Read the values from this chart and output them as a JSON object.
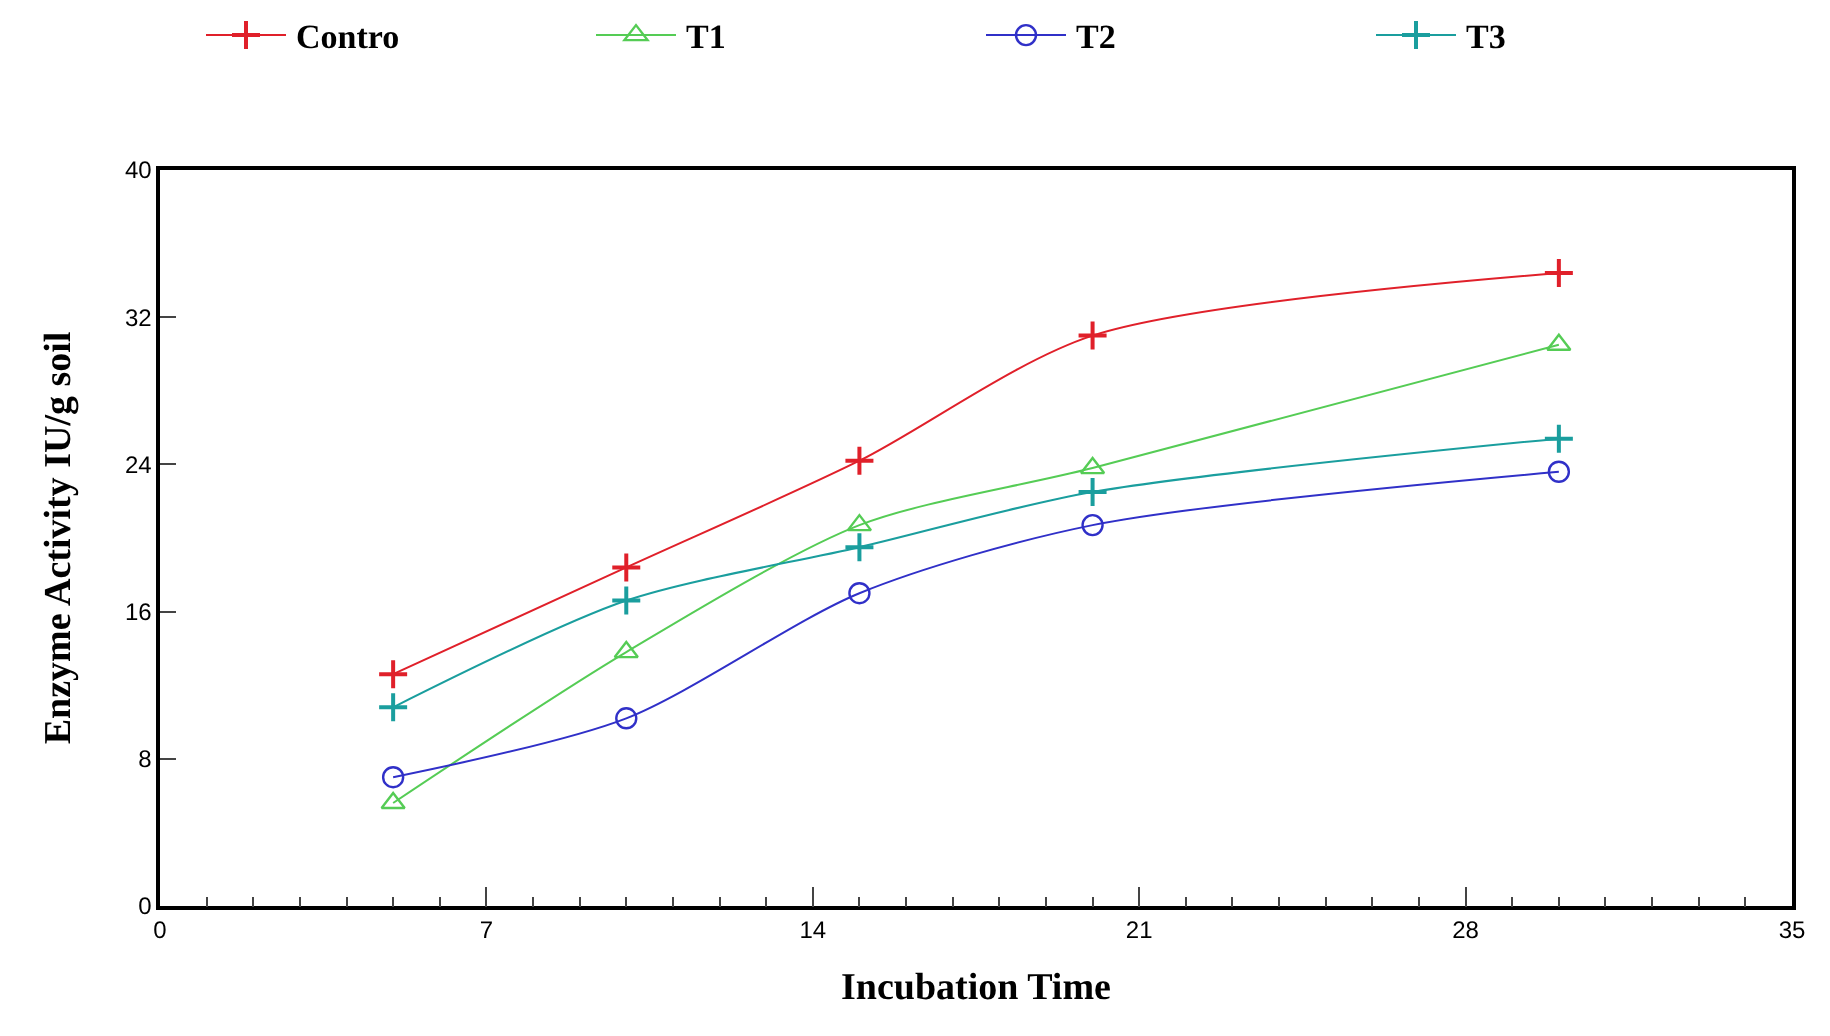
{
  "chart_data": {
    "type": "line",
    "xlabel": "Incubation Time",
    "ylabel": "Enzyme Activity IU/g soil",
    "x": [
      5,
      10,
      15,
      20,
      30
    ],
    "series": [
      {
        "name": "Contro",
        "color": "#e0202a",
        "marker": "cross",
        "values": [
          12.6,
          18.4,
          24.2,
          31.0,
          34.4
        ]
      },
      {
        "name": "T1",
        "color": "#55cc55",
        "marker": "triangle",
        "values": [
          5.6,
          13.8,
          20.7,
          23.8,
          30.5
        ]
      },
      {
        "name": "T2",
        "color": "#3030c8",
        "marker": "circle",
        "values": [
          7.0,
          10.2,
          17.0,
          20.7,
          23.6
        ]
      },
      {
        "name": "T3",
        "color": "#1a9e9e",
        "marker": "cross",
        "values": [
          10.8,
          16.6,
          19.5,
          22.5,
          25.4
        ]
      }
    ],
    "xlim": [
      0,
      35
    ],
    "xticks": [
      0,
      7,
      14,
      21,
      28,
      35
    ],
    "ylim": [
      0,
      40
    ],
    "yticks": [
      0,
      8,
      16,
      24,
      32,
      40
    ],
    "legend": "top"
  }
}
